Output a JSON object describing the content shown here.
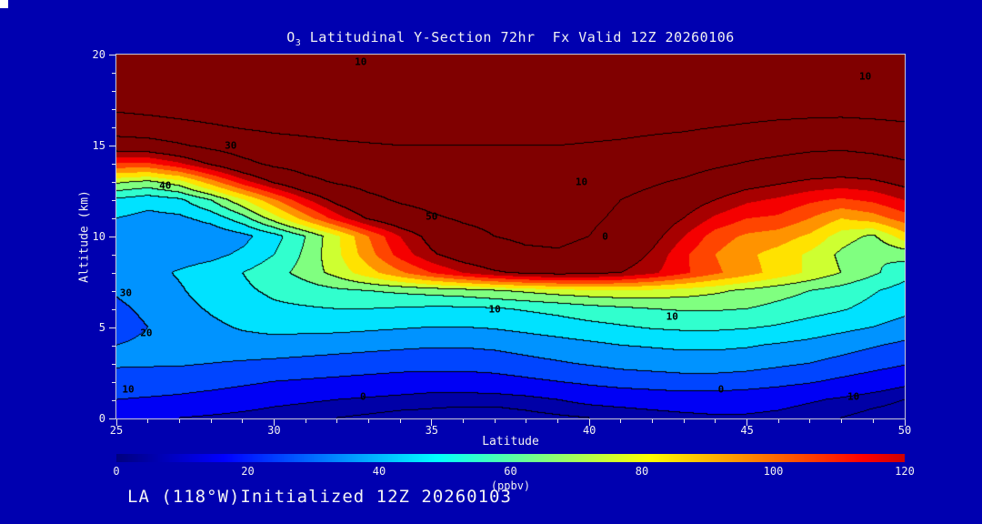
{
  "background": "#0000B0",
  "title": {
    "prefix": "O",
    "sub": "3",
    "rest": " Latitudinal Y-Section 72hr  Fx Valid 12Z 20260106"
  },
  "footer": "LA (118°W)Initialized 12Z 20260103",
  "axes": {
    "x": {
      "label": "Latitude",
      "min": 25,
      "max": 50,
      "major": [
        25,
        30,
        35,
        40,
        45,
        50
      ],
      "minor_step": 1
    },
    "y": {
      "label": "Altitude (km)",
      "min": 0,
      "max": 20,
      "major": [
        0,
        5,
        10,
        15,
        20
      ],
      "minor_step": 1
    }
  },
  "colorbar": {
    "min": 0,
    "max": 120,
    "ticks": [
      0,
      20,
      40,
      60,
      80,
      100,
      120
    ],
    "unit": "(ppbv)"
  },
  "chart_data": {
    "type": "heatmap",
    "title": "O3 Latitudinal Y-Section 72hr  Fx Valid 12Z 20260106",
    "xlabel": "Latitude",
    "ylabel": "Altitude (km)",
    "unit": "ppbv",
    "xlim": [
      25,
      50
    ],
    "ylim": [
      0,
      20
    ],
    "colormap": "jet",
    "contour_line_color": "#000000",
    "fill_level_step": 10,
    "fill_max": 130,
    "line_levels": [
      5,
      10,
      20,
      30,
      40,
      50,
      60,
      70,
      130,
      150,
      170
    ],
    "x": [
      25,
      26,
      27,
      28,
      29,
      30,
      31,
      32,
      33,
      34,
      35,
      36,
      37,
      38,
      39,
      40,
      41,
      42,
      43,
      44,
      45,
      46,
      47,
      48,
      49,
      50
    ],
    "y": [
      0,
      1,
      2,
      3,
      4,
      5,
      6,
      7,
      8,
      9,
      10,
      11,
      12,
      13,
      14,
      15,
      16,
      17,
      18,
      19,
      20
    ],
    "values": [
      [
        12,
        11,
        10,
        9,
        8,
        7,
        6,
        5,
        4,
        3,
        3,
        2,
        2,
        3,
        4,
        5,
        6,
        7,
        8,
        9,
        9,
        8,
        6,
        5,
        3,
        2
      ],
      [
        20,
        19,
        18,
        16,
        14,
        12,
        11,
        10,
        9,
        8,
        7,
        7,
        7,
        8,
        10,
        12,
        13,
        14,
        15,
        15,
        14,
        13,
        11,
        9,
        7,
        5
      ],
      [
        27,
        26,
        25,
        24,
        22,
        20,
        19,
        18,
        17,
        16,
        15,
        15,
        16,
        18,
        20,
        22,
        24,
        25,
        26,
        26,
        25,
        23,
        21,
        18,
        15,
        12
      ],
      [
        31,
        31,
        31,
        30,
        29,
        28,
        27,
        26,
        25,
        24,
        24,
        24,
        25,
        27,
        29,
        31,
        33,
        34,
        35,
        35,
        34,
        32,
        30,
        27,
        24,
        21
      ],
      [
        30,
        32,
        34,
        35,
        36,
        36,
        35,
        34,
        33,
        32,
        31,
        31,
        32,
        34,
        36,
        38,
        40,
        41,
        42,
        42,
        41,
        39,
        37,
        34,
        31,
        28
      ],
      [
        26,
        30,
        34,
        38,
        41,
        43,
        43,
        43,
        42,
        41,
        40,
        40,
        41,
        43,
        45,
        47,
        49,
        51,
        52,
        52,
        51,
        49,
        46,
        43,
        40,
        36
      ],
      [
        28,
        32,
        37,
        41,
        45,
        48,
        49,
        50,
        50,
        49,
        48,
        48,
        49,
        51,
        53,
        56,
        58,
        60,
        61,
        61,
        60,
        57,
        54,
        51,
        47,
        43
      ],
      [
        31,
        35,
        39,
        44,
        48,
        52,
        55,
        58,
        60,
        62,
        64,
        66,
        69,
        72,
        75,
        77,
        78,
        77,
        75,
        72,
        68,
        64,
        60,
        56,
        51,
        46
      ],
      [
        34,
        37,
        41,
        45,
        50,
        56,
        64,
        74,
        86,
        98,
        110,
        120,
        128,
        133,
        135,
        134,
        130,
        122,
        112,
        102,
        94,
        86,
        78,
        70,
        62,
        54
      ],
      [
        38,
        36,
        35,
        37,
        42,
        50,
        62,
        78,
        96,
        114,
        128,
        138,
        145,
        148,
        149,
        147,
        140,
        128,
        112,
        100,
        92,
        86,
        78,
        68,
        60,
        64
      ],
      [
        34,
        31,
        30,
        32,
        37,
        46,
        60,
        78,
        100,
        120,
        135,
        145,
        150,
        152,
        152,
        150,
        145,
        135,
        120,
        105,
        98,
        95,
        88,
        75,
        68,
        85
      ],
      [
        40,
        37,
        38,
        44,
        56,
        75,
        95,
        115,
        132,
        142,
        148,
        152,
        154,
        154,
        154,
        152,
        148,
        140,
        130,
        118,
        110,
        108,
        100,
        90,
        95,
        105
      ],
      [
        48,
        44,
        48,
        60,
        78,
        98,
        118,
        135,
        146,
        152,
        155,
        156,
        156,
        156,
        155,
        154,
        150,
        145,
        138,
        130,
        122,
        118,
        112,
        108,
        112,
        120
      ],
      [
        72,
        68,
        76,
        95,
        115,
        132,
        145,
        152,
        156,
        158,
        159,
        160,
        160,
        160,
        159,
        158,
        156,
        152,
        148,
        142,
        136,
        132,
        128,
        126,
        128,
        134
      ],
      [
        108,
        108,
        118,
        132,
        145,
        154,
        158,
        161,
        163,
        164,
        164,
        165,
        165,
        165,
        164,
        163,
        162,
        160,
        157,
        153,
        149,
        146,
        143,
        142,
        144,
        148
      ],
      [
        140,
        142,
        148,
        155,
        160,
        164,
        166,
        168,
        169,
        170,
        170,
        170,
        170,
        170,
        170,
        169,
        168,
        166,
        164,
        161,
        158,
        156,
        154,
        153,
        155,
        158
      ],
      [
        160,
        162,
        165,
        168,
        171,
        173,
        174,
        175,
        176,
        176,
        176,
        176,
        176,
        176,
        176,
        175,
        174,
        173,
        172,
        170,
        168,
        166,
        165,
        164,
        165,
        167
      ],
      [
        172,
        174,
        176,
        178,
        180,
        181,
        182,
        182,
        183,
        183,
        183,
        183,
        183,
        183,
        183,
        182,
        182,
        181,
        180,
        179,
        177,
        176,
        175,
        175,
        176,
        177
      ],
      [
        182,
        183,
        185,
        186,
        187,
        188,
        188,
        189,
        189,
        189,
        189,
        189,
        189,
        189,
        189,
        189,
        188,
        188,
        187,
        186,
        185,
        184,
        184,
        184,
        184,
        185
      ],
      [
        190,
        191,
        192,
        193,
        193,
        194,
        194,
        194,
        194,
        195,
        195,
        195,
        195,
        195,
        194,
        194,
        194,
        193,
        193,
        192,
        192,
        191,
        191,
        191,
        191,
        192
      ],
      [
        196,
        196,
        197,
        197,
        198,
        198,
        198,
        198,
        198,
        198,
        198,
        198,
        198,
        198,
        198,
        198,
        198,
        197,
        197,
        197,
        196,
        196,
        196,
        196,
        196,
        196
      ]
    ],
    "contour_labels": [
      {
        "t": "10",
        "x": 0.31,
        "y": 0.02
      },
      {
        "t": "10",
        "x": 0.95,
        "y": 0.06
      },
      {
        "t": "30",
        "x": 0.145,
        "y": 0.25
      },
      {
        "t": "40",
        "x": 0.062,
        "y": 0.36
      },
      {
        "t": "50",
        "x": 0.4,
        "y": 0.445
      },
      {
        "t": "10",
        "x": 0.59,
        "y": 0.35
      },
      {
        "t": "0",
        "x": 0.62,
        "y": 0.5
      },
      {
        "t": "30",
        "x": 0.012,
        "y": 0.655
      },
      {
        "t": "20",
        "x": 0.038,
        "y": 0.765
      },
      {
        "t": "10",
        "x": 0.015,
        "y": 0.92
      },
      {
        "t": "0",
        "x": 0.313,
        "y": 0.94
      },
      {
        "t": "10",
        "x": 0.48,
        "y": 0.7
      },
      {
        "t": "10",
        "x": 0.705,
        "y": 0.72
      },
      {
        "t": "0",
        "x": 0.767,
        "y": 0.92
      },
      {
        "t": "10",
        "x": 0.935,
        "y": 0.94
      }
    ]
  }
}
